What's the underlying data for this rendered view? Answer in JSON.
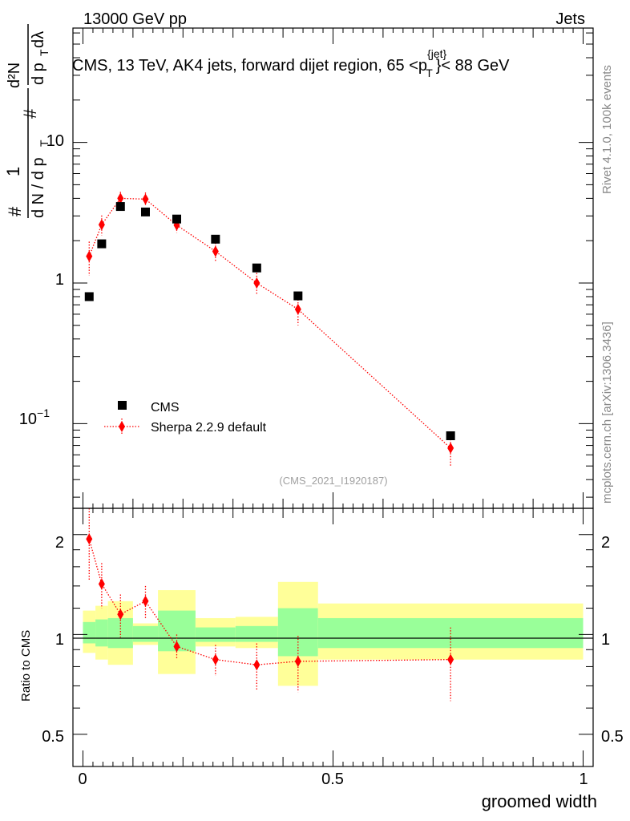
{
  "header": {
    "left": "13000 GeV pp",
    "right": "Jets",
    "title_main": "CMS, 13 TeV, AK4 jets, forward dijet region, 65 <p",
    "title_sup": "{jet}",
    "title_sub": "T",
    "title_end": "}< 88 GeV"
  },
  "side_labels": {
    "rivet": "Rivet 4.1.0,  100k events",
    "mcplots": "mcplots.cern.ch [arXiv:1306.3436]"
  },
  "watermark": "(CMS_2021_I1920187)",
  "legend": {
    "cms": "CMS",
    "sherpa": "Sherpa 2.2.9 default"
  },
  "ylabel_top": {
    "hash1": "#",
    "one": "1",
    "dNdp": "d N / d p",
    "T": "T",
    "hash2": "#",
    "d2N": "d²N",
    "dpdl": "d p",
    "T2": "T",
    "dlambda": "dλ"
  },
  "ylabel_bottom": "Ratio to CMS",
  "xlabel": "groomed width",
  "top_ticks": {
    "t10": "10",
    "t1": "1",
    "t01_base": "10",
    "t01_exp": "−1"
  },
  "ratio_ticks": [
    "2",
    "1",
    "0.5"
  ],
  "x_ticks": [
    "0",
    "0.5",
    "1"
  ],
  "colors": {
    "data": "#000000",
    "mc": "#ff0000",
    "band_inner": "#99ff99",
    "band_outer": "#ffff99"
  },
  "chart_data": {
    "type": "scatter",
    "x_range": [
      -0.02,
      1.02
    ],
    "y_top_range": [
      0.025,
      65
    ],
    "y_top_scale": "log",
    "y_ratio_range": [
      0.4,
      2.4
    ],
    "y_ratio_scale": "log",
    "bins": [
      {
        "lo": 0.0,
        "hi": 0.025,
        "x": 0.0125,
        "cms": 0.8,
        "sherpa": 1.55,
        "sherpa_err": 0.42,
        "ratio": 1.94,
        "ratio_err": 0.48,
        "inner": [
          0.94,
          1.09
        ],
        "outer": [
          0.88,
          1.18
        ]
      },
      {
        "lo": 0.025,
        "hi": 0.05,
        "x": 0.0375,
        "cms": 1.9,
        "sherpa": 2.6,
        "sherpa_err": 0.42,
        "ratio": 1.42,
        "ratio_err": 0.22,
        "inner": [
          0.92,
          1.11
        ],
        "outer": [
          0.84,
          1.22
        ]
      },
      {
        "lo": 0.05,
        "hi": 0.1,
        "x": 0.075,
        "cms": 3.5,
        "sherpa": 4.0,
        "sherpa_err": 0.45,
        "ratio": 1.15,
        "ratio_err": 0.17,
        "inner": [
          0.91,
          1.12
        ],
        "outer": [
          0.81,
          1.26
        ]
      },
      {
        "lo": 0.1,
        "hi": 0.15,
        "x": 0.125,
        "cms": 3.2,
        "sherpa": 3.95,
        "sherpa_err": 0.45,
        "ratio": 1.26,
        "ratio_err": 0.14,
        "inner": [
          0.95,
          1.06
        ],
        "outer": [
          0.93,
          1.08
        ]
      },
      {
        "lo": 0.15,
        "hi": 0.225,
        "x": 0.1875,
        "cms": 2.85,
        "sherpa": 2.58,
        "sherpa_err": 0.3,
        "ratio": 0.92,
        "ratio_err": 0.08,
        "inner": [
          0.89,
          1.18
        ],
        "outer": [
          0.76,
          1.36
        ]
      },
      {
        "lo": 0.225,
        "hi": 0.305,
        "x": 0.265,
        "cms": 2.05,
        "sherpa": 1.68,
        "sherpa_err": 0.25,
        "ratio": 0.84,
        "ratio_err": 0.09,
        "inner": [
          0.95,
          1.05
        ],
        "outer": [
          0.92,
          1.12
        ]
      },
      {
        "lo": 0.305,
        "hi": 0.39,
        "x": 0.3475,
        "cms": 1.28,
        "sherpa": 1.0,
        "sherpa_err": 0.18,
        "ratio": 0.81,
        "ratio_err": 0.13,
        "inner": [
          0.95,
          1.06
        ],
        "outer": [
          0.91,
          1.13
        ]
      },
      {
        "lo": 0.39,
        "hi": 0.47,
        "x": 0.43,
        "cms": 0.81,
        "sherpa": 0.65,
        "sherpa_err": 0.15,
        "ratio": 0.83,
        "ratio_err": 0.16,
        "inner": [
          0.86,
          1.2
        ],
        "outer": [
          0.7,
          1.44
        ]
      },
      {
        "lo": 0.47,
        "hi": 1.0,
        "x": 0.735,
        "cms": 0.082,
        "sherpa": 0.067,
        "sherpa_err": 0.018,
        "ratio": 0.84,
        "ratio_err": 0.21,
        "inner": [
          0.91,
          1.12
        ],
        "outer": [
          0.84,
          1.24
        ]
      }
    ]
  }
}
